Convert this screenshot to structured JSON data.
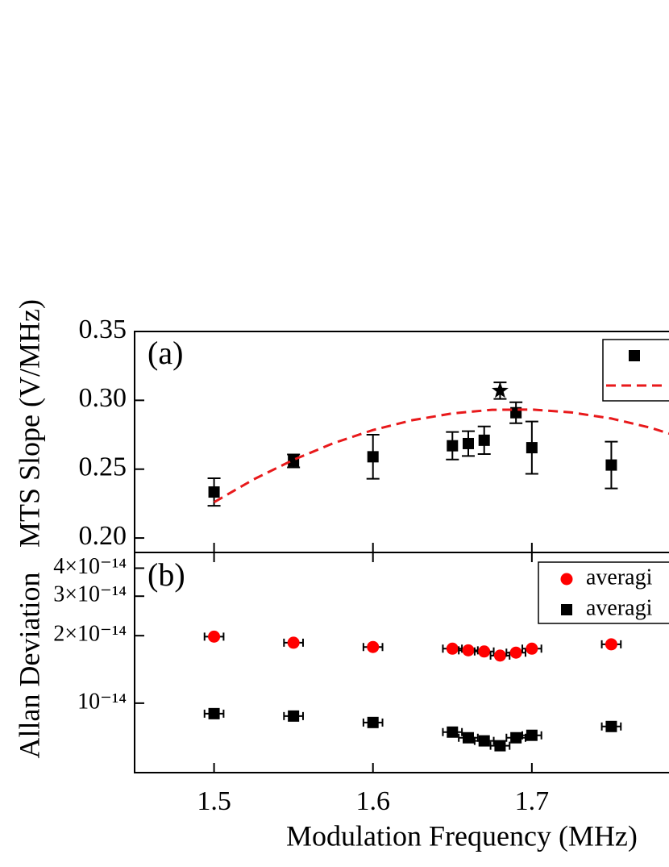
{
  "chart_data": [
    {
      "type": "scatter",
      "panel_label": "(a)",
      "y_label": "MTS Slope (V/MHz)",
      "xlim": [
        1.45,
        1.8
      ],
      "xticks": [
        1.5,
        1.6,
        1.7
      ],
      "ylim": [
        0.1895,
        0.35
      ],
      "yticks": [
        {
          "value": 0.2,
          "label": "0.20"
        },
        0.25,
        {
          "value": 0.3,
          "label": "0.30"
        },
        0.35
      ],
      "series": [
        {
          "mode": "markers",
          "marker": "square",
          "color": "#000000",
          "x": [
            1.5,
            1.55,
            1.6,
            1.65,
            1.66,
            1.67,
            1.69,
            1.7,
            1.75
          ],
          "values": [
            0.2334,
            0.256,
            0.259,
            0.267,
            0.2686,
            0.271,
            0.291,
            0.2656,
            0.253
          ],
          "errors": [
            0.01,
            0.0047,
            0.016,
            0.01,
            0.009,
            0.01,
            0.0076,
            0.019,
            0.017
          ]
        },
        {
          "mode": "dashed-line",
          "color": "#e8191b",
          "x": [
            1.5,
            1.525,
            1.55,
            1.575,
            1.6,
            1.625,
            1.65,
            1.675,
            1.7,
            1.725,
            1.75,
            1.775,
            1.8
          ],
          "values": [
            0.226,
            0.2426,
            0.2568,
            0.2688,
            0.2784,
            0.2856,
            0.2905,
            0.2931,
            0.2933,
            0.2912,
            0.2868,
            0.28,
            0.2709
          ]
        },
        {
          "mode": "markers",
          "marker": "star",
          "color": "#000000",
          "x": [
            1.68
          ],
          "values": [
            0.307
          ],
          "errors": [
            0.006
          ]
        }
      ]
    },
    {
      "type": "scatter",
      "panel_label": "(b)",
      "y_label": "Allan Deviation",
      "x_label": "Modulation Frequency (MHz)",
      "xlim": [
        1.45,
        1.8
      ],
      "xticks": [
        1.5,
        1.6,
        1.7
      ],
      "log_y": true,
      "ylim": [
        4.9e-15,
        4.7e-14
      ],
      "yticks": [
        {
          "value": 1e-14,
          "label": "10⁻¹⁴"
        },
        {
          "value": 2e-14,
          "label": "2×10⁻¹⁴"
        },
        {
          "value": 3e-14,
          "label": "3×10⁻¹⁴"
        },
        {
          "value": 4e-14,
          "label": "4×10⁻¹⁴"
        }
      ],
      "series": [
        {
          "name": "averagi",
          "mode": "markers",
          "marker": "circle",
          "color": "#ff0000",
          "x": [
            1.5,
            1.55,
            1.6,
            1.65,
            1.66,
            1.67,
            1.68,
            1.69,
            1.7,
            1.75
          ],
          "values": [
            1.98e-14,
            1.86e-14,
            1.78e-14,
            1.75e-14,
            1.72e-14,
            1.7e-14,
            1.63e-14,
            1.68e-14,
            1.75e-14,
            1.83e-14
          ],
          "xerr": [
            0.006,
            0.006,
            0.006,
            0.006,
            0.006,
            0.006,
            0.006,
            0.006,
            0.006,
            0.006
          ]
        },
        {
          "name": "averagi",
          "mode": "markers",
          "marker": "square",
          "color": "#000000",
          "x": [
            1.5,
            1.55,
            1.6,
            1.65,
            1.66,
            1.67,
            1.68,
            1.69,
            1.7,
            1.75
          ],
          "values": [
            8.98e-15,
            8.76e-15,
            8.2e-15,
            7.43e-15,
            7.01e-15,
            6.79e-15,
            6.46e-15,
            7.01e-15,
            7.19e-15,
            7.87e-15
          ],
          "xerr": [
            0.006,
            0.006,
            0.006,
            0.006,
            0.006,
            0.006,
            0.006,
            0.006,
            0.006,
            0.006
          ]
        }
      ]
    }
  ]
}
